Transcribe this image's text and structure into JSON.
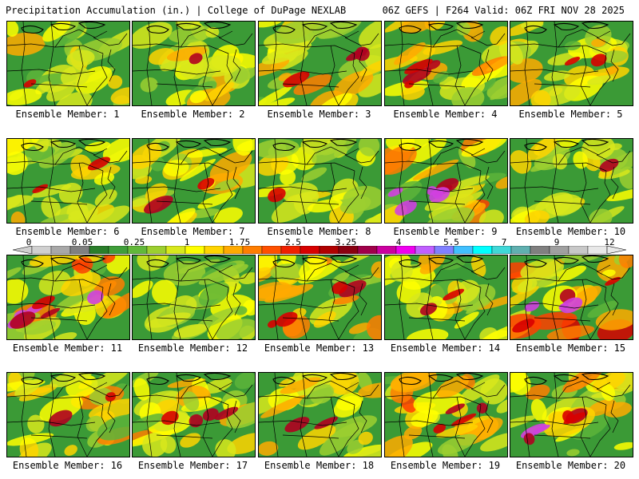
{
  "header": {
    "title": "Precipitation Accumulation (in.) | College of DuPage NEXLAB",
    "valid": "06Z GEFS | F264 Valid: 06Z FRI NOV 28 2025"
  },
  "panels": [
    {
      "label": "Ensemble Member: 1",
      "intensity": 0.4,
      "heavy": 0.1
    },
    {
      "label": "Ensemble Member: 2",
      "intensity": 0.45,
      "heavy": 0.15
    },
    {
      "label": "Ensemble Member: 3",
      "intensity": 0.6,
      "heavy": 0.4
    },
    {
      "label": "Ensemble Member: 4",
      "intensity": 0.6,
      "heavy": 0.45
    },
    {
      "label": "Ensemble Member: 5",
      "intensity": 0.5,
      "heavy": 0.2
    },
    {
      "label": "Ensemble Member: 6",
      "intensity": 0.45,
      "heavy": 0.2
    },
    {
      "label": "Ensemble Member: 7",
      "intensity": 0.5,
      "heavy": 0.3
    },
    {
      "label": "Ensemble Member: 8",
      "intensity": 0.35,
      "heavy": 0.15
    },
    {
      "label": "Ensemble Member: 9",
      "intensity": 0.7,
      "heavy": 0.85
    },
    {
      "label": "Ensemble Member: 10",
      "intensity": 0.4,
      "heavy": 0.1
    },
    {
      "label": "Ensemble Member: 11",
      "intensity": 0.7,
      "heavy": 0.9
    },
    {
      "label": "Ensemble Member: 12",
      "intensity": 0.3,
      "heavy": 0.05
    },
    {
      "label": "Ensemble Member: 13",
      "intensity": 0.6,
      "heavy": 0.45
    },
    {
      "label": "Ensemble Member: 14",
      "intensity": 0.5,
      "heavy": 0.2
    },
    {
      "label": "Ensemble Member: 15",
      "intensity": 0.8,
      "heavy": 0.7
    },
    {
      "label": "Ensemble Member: 16",
      "intensity": 0.55,
      "heavy": 0.3
    },
    {
      "label": "Ensemble Member: 17",
      "intensity": 0.55,
      "heavy": 0.5
    },
    {
      "label": "Ensemble Member: 18",
      "intensity": 0.45,
      "heavy": 0.25
    },
    {
      "label": "Ensemble Member: 19",
      "intensity": 0.6,
      "heavy": 0.45
    },
    {
      "label": "Ensemble Member: 20",
      "intensity": 0.65,
      "heavy": 0.7
    }
  ],
  "colorbar": {
    "ticks": [
      "0",
      "0.05",
      "0.25",
      "1",
      "1.75",
      "2.5",
      "3.25",
      "4",
      "5.5",
      "7",
      "9",
      "12"
    ],
    "colors": [
      "#d0d0d0",
      "#a8a8a8",
      "#808080",
      "#2a7e2a",
      "#3f9e3a",
      "#62b83a",
      "#9ccf30",
      "#d8e81c",
      "#ffff00",
      "#ffd400",
      "#ffaa00",
      "#ff7e00",
      "#ff5000",
      "#f02000",
      "#d80000",
      "#b00000",
      "#8a0010",
      "#a0004a",
      "#cc00a0",
      "#f000f0",
      "#c060ff",
      "#8080ff",
      "#40c0ff",
      "#00ffff",
      "#40d8d8",
      "#60b0b0",
      "#808080",
      "#a0a0a0",
      "#c8c8c8",
      "#e8e8e8"
    ]
  }
}
